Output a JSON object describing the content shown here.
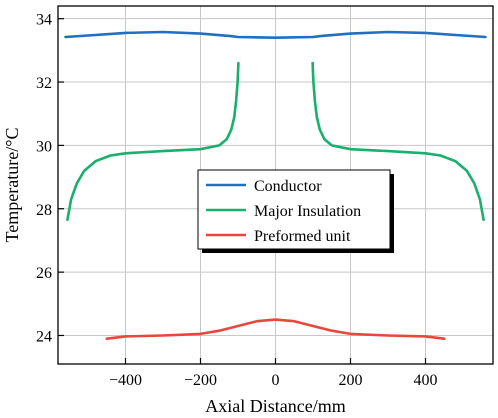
{
  "chart_data": {
    "type": "line",
    "xlabel": "Axial Distance/mm",
    "ylabel": "Temperature/°C",
    "xlim": [
      -580,
      580
    ],
    "ylim": [
      23.1,
      34.4
    ],
    "xticks": [
      -400,
      -200,
      0,
      200,
      400
    ],
    "yticks": [
      24,
      26,
      28,
      30,
      32,
      34
    ],
    "grid": true,
    "legend_placement": "center",
    "series": [
      {
        "name": "Conductor",
        "color": "#1f6fc5",
        "segments": [
          [
            [
              -560,
              33.42
            ],
            [
              -500,
              33.47
            ],
            [
              -400,
              33.55
            ],
            [
              -300,
              33.58
            ],
            [
              -200,
              33.53
            ],
            [
              -120,
              33.45
            ],
            [
              -100,
              33.42
            ],
            [
              0,
              33.4
            ],
            [
              100,
              33.42
            ],
            [
              120,
              33.45
            ],
            [
              200,
              33.53
            ],
            [
              300,
              33.58
            ],
            [
              400,
              33.55
            ],
            [
              500,
              33.47
            ],
            [
              560,
              33.42
            ]
          ]
        ]
      },
      {
        "name": "Major Insulation",
        "color": "#1aaf6c",
        "segments": [
          [
            [
              -555,
              27.65
            ],
            [
              -545,
              28.3
            ],
            [
              -530,
              28.8
            ],
            [
              -510,
              29.2
            ],
            [
              -480,
              29.5
            ],
            [
              -440,
              29.68
            ],
            [
              -400,
              29.75
            ],
            [
              -300,
              29.82
            ],
            [
              -200,
              29.88
            ],
            [
              -150,
              30.0
            ],
            [
              -130,
              30.2
            ],
            [
              -118,
              30.5
            ],
            [
              -110,
              30.9
            ],
            [
              -105,
              31.4
            ],
            [
              -101,
              32.0
            ],
            [
              -99,
              32.6
            ]
          ],
          [
            [
              99,
              32.6
            ],
            [
              101,
              32.0
            ],
            [
              105,
              31.4
            ],
            [
              110,
              30.9
            ],
            [
              118,
              30.5
            ],
            [
              130,
              30.2
            ],
            [
              150,
              30.0
            ],
            [
              200,
              29.88
            ],
            [
              300,
              29.82
            ],
            [
              400,
              29.75
            ],
            [
              440,
              29.68
            ],
            [
              480,
              29.5
            ],
            [
              510,
              29.2
            ],
            [
              530,
              28.8
            ],
            [
              545,
              28.3
            ],
            [
              555,
              27.65
            ]
          ]
        ]
      },
      {
        "name": "Preformed unit",
        "color": "#e8473e",
        "segments": [
          [
            [
              -450,
              23.9
            ],
            [
              -400,
              23.97
            ],
            [
              -300,
              24.0
            ],
            [
              -200,
              24.05
            ],
            [
              -150,
              24.15
            ],
            [
              -100,
              24.3
            ],
            [
              -50,
              24.45
            ],
            [
              0,
              24.5
            ],
            [
              50,
              24.45
            ],
            [
              100,
              24.3
            ],
            [
              150,
              24.15
            ],
            [
              200,
              24.05
            ],
            [
              300,
              24.0
            ],
            [
              400,
              23.97
            ],
            [
              450,
              23.9
            ]
          ]
        ]
      }
    ]
  }
}
